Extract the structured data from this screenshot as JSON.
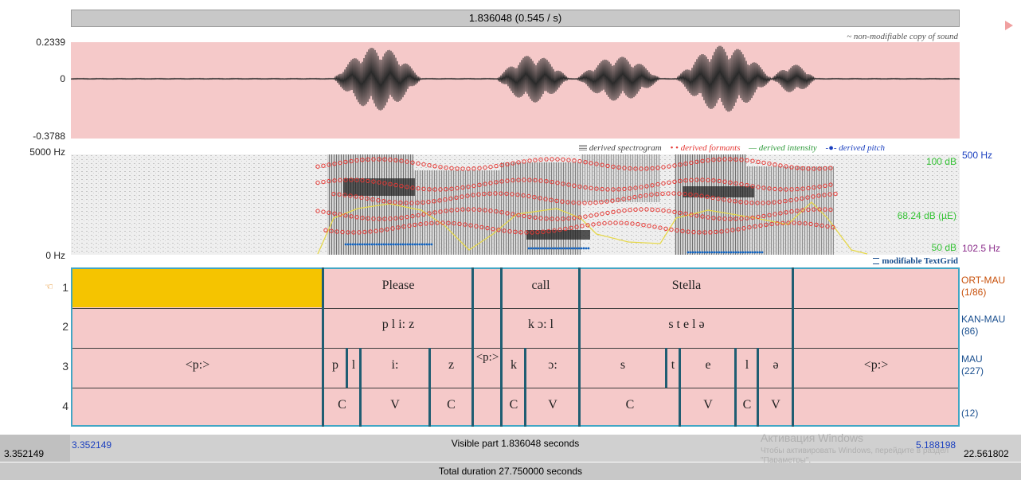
{
  "header": {
    "selection_label": "1.836048 (0.545 / s)"
  },
  "waveform": {
    "y_max": "0.2339",
    "y_zero": "0",
    "y_min": "-0.3788",
    "copy_note": "~ non-modifiable copy of sound"
  },
  "spectrogram": {
    "freq_top": "5000 Hz",
    "freq_bottom": "0 Hz",
    "legend": {
      "spectrogram": "derived spectrogram",
      "formants": "derived formants",
      "intensity": "derived intensity",
      "pitch": "derived pitch"
    },
    "pitch_top": "500 Hz",
    "pitch_bottom": "102.5 Hz",
    "intensity_top": "100 dB",
    "intensity_mid": "68.24 dB (µE)",
    "intensity_bottom": "50 dB",
    "colors": {
      "formant": "#e53935",
      "intensity": "#e6d84a",
      "pitch": "#1565c0"
    }
  },
  "textgrid": {
    "title": "modifiable TextGrid",
    "pointer_glyph": "☜",
    "tiers": [
      {
        "number": "1",
        "name": "ORT-MAU",
        "count": "(1/86)",
        "intervals": [
          "",
          "Please",
          "",
          "call",
          "Stella",
          ""
        ]
      },
      {
        "number": "2",
        "name": "KAN-MAU",
        "count": "(86)",
        "intervals": [
          "",
          "p l i: z",
          "",
          "k ɔ: l",
          "s t e l ə",
          ""
        ]
      },
      {
        "number": "3",
        "name": "MAU",
        "count": "(227)",
        "intervals": [
          "<p:>",
          "p",
          "l",
          "i:",
          "z",
          "<p:>",
          "k",
          "ɔ:",
          "s",
          "t",
          "e",
          "l",
          "ə",
          "<p:>"
        ]
      },
      {
        "number": "4",
        "name": "",
        "count": "(12)",
        "intervals": [
          "C",
          "V",
          "C",
          "C",
          "V",
          "C",
          "V",
          "C",
          "V"
        ]
      }
    ]
  },
  "footer": {
    "visible_start": "3.352149",
    "visible_end": "5.188198",
    "visible_label": "Visible part 1.836048 seconds",
    "left_time": "3.352149",
    "right_time": "22.561802",
    "total_label": "Total duration 27.750000 seconds",
    "watermark_title": "Активация Windows",
    "watermark_text": "Чтобы активировать Windows, перейдите в раздел \"Параметры\"."
  }
}
